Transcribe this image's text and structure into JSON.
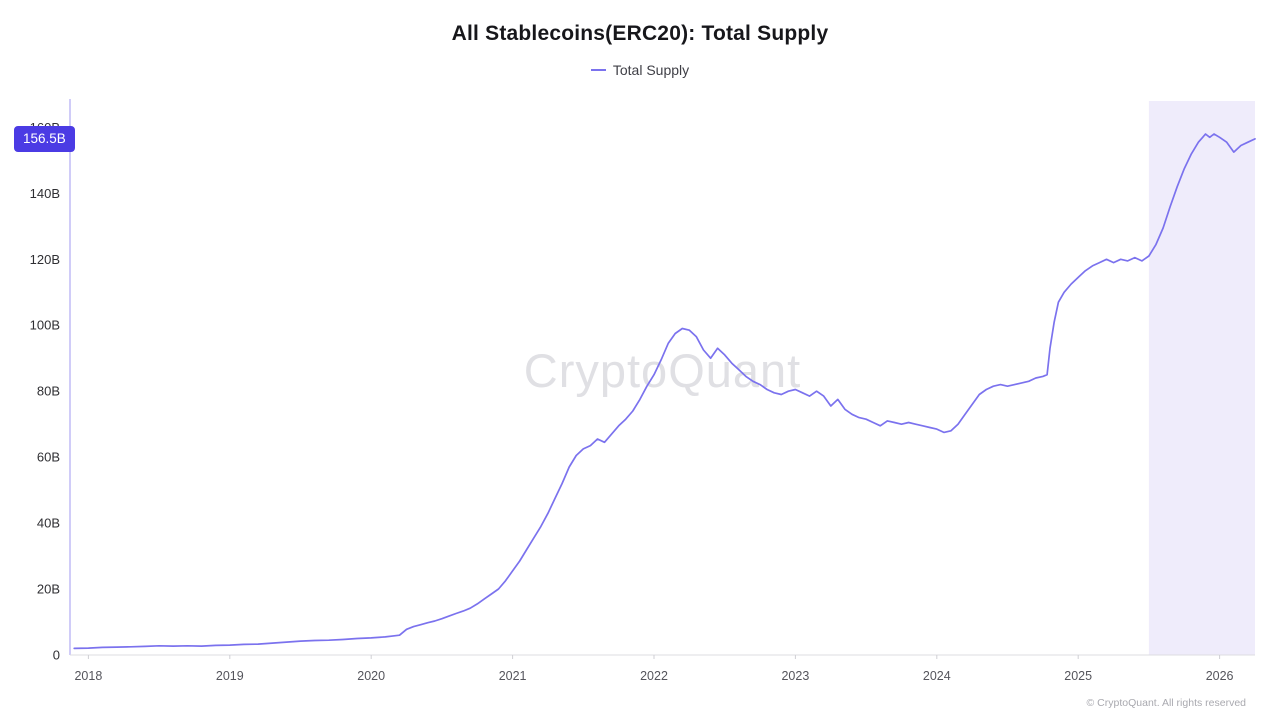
{
  "header": {
    "title": "All Stablecoins(ERC20): Total Supply",
    "legend": {
      "label": "Total Supply"
    }
  },
  "badge": {
    "value": "156.5B",
    "bg_color": "#4B3BE4",
    "text_color": "#ffffff"
  },
  "watermark": "CryptoQuant",
  "footer": {
    "copyright": "© CryptoQuant. All rights reserved"
  },
  "chart_data": {
    "type": "line",
    "title": "All Stablecoins(ERC20): Total Supply",
    "ylabel": "",
    "xlabel": "",
    "grid": false,
    "legend_position": "top",
    "x_range": [
      2017.87,
      2026.25
    ],
    "y_range": [
      0,
      168
    ],
    "x_ticks": [
      2018,
      2019,
      2020,
      2021,
      2022,
      2023,
      2024,
      2025,
      2026
    ],
    "x_tick_labels": [
      "2018",
      "2019",
      "2020",
      "2021",
      "2022",
      "2023",
      "2024",
      "2025",
      "2026"
    ],
    "y_ticks": [
      0,
      20,
      40,
      60,
      80,
      100,
      120,
      140,
      160
    ],
    "y_tick_labels": [
      "0",
      "20B",
      "40B",
      "60B",
      "80B",
      "100B",
      "120B",
      "140B",
      "160B"
    ],
    "axis_color": "#A29AF0",
    "baseline_color": "#dcdce0",
    "tick_color": "#cfcfd4",
    "y_label_color": "#2f2f33",
    "x_label_color": "#55555c",
    "current_value": 156.5,
    "current_value_label": "156.5B",
    "highlight_region": {
      "x_start": 2025.5,
      "x_end": 2026.25,
      "color": "#EFECFB"
    },
    "series": [
      {
        "name": "Total Supply",
        "color": "#7B72EE",
        "points": [
          [
            2017.9,
            2.0
          ],
          [
            2018.0,
            2.1
          ],
          [
            2018.1,
            2.3
          ],
          [
            2018.2,
            2.4
          ],
          [
            2018.3,
            2.5
          ],
          [
            2018.4,
            2.6
          ],
          [
            2018.5,
            2.8
          ],
          [
            2018.6,
            2.7
          ],
          [
            2018.7,
            2.8
          ],
          [
            2018.8,
            2.7
          ],
          [
            2018.9,
            2.9
          ],
          [
            2019.0,
            3.0
          ],
          [
            2019.1,
            3.2
          ],
          [
            2019.2,
            3.3
          ],
          [
            2019.3,
            3.6
          ],
          [
            2019.4,
            3.9
          ],
          [
            2019.5,
            4.2
          ],
          [
            2019.6,
            4.4
          ],
          [
            2019.7,
            4.5
          ],
          [
            2019.8,
            4.7
          ],
          [
            2019.9,
            5.0
          ],
          [
            2020.0,
            5.2
          ],
          [
            2020.1,
            5.5
          ],
          [
            2020.2,
            6.0
          ],
          [
            2020.25,
            7.8
          ],
          [
            2020.3,
            8.6
          ],
          [
            2020.35,
            9.2
          ],
          [
            2020.4,
            9.8
          ],
          [
            2020.45,
            10.3
          ],
          [
            2020.5,
            11.0
          ],
          [
            2020.55,
            11.8
          ],
          [
            2020.6,
            12.6
          ],
          [
            2020.65,
            13.3
          ],
          [
            2020.7,
            14.2
          ],
          [
            2020.75,
            15.5
          ],
          [
            2020.8,
            17.0
          ],
          [
            2020.85,
            18.5
          ],
          [
            2020.9,
            20.0
          ],
          [
            2020.95,
            22.5
          ],
          [
            2021.0,
            25.5
          ],
          [
            2021.05,
            28.5
          ],
          [
            2021.1,
            32.0
          ],
          [
            2021.15,
            35.5
          ],
          [
            2021.2,
            39.0
          ],
          [
            2021.25,
            43.0
          ],
          [
            2021.3,
            47.5
          ],
          [
            2021.35,
            52.0
          ],
          [
            2021.4,
            57.0
          ],
          [
            2021.45,
            60.5
          ],
          [
            2021.5,
            62.5
          ],
          [
            2021.55,
            63.5
          ],
          [
            2021.6,
            65.5
          ],
          [
            2021.65,
            64.5
          ],
          [
            2021.7,
            67.0
          ],
          [
            2021.75,
            69.5
          ],
          [
            2021.8,
            71.5
          ],
          [
            2021.85,
            74.0
          ],
          [
            2021.9,
            77.5
          ],
          [
            2021.95,
            81.5
          ],
          [
            2022.0,
            85.0
          ],
          [
            2022.05,
            89.5
          ],
          [
            2022.1,
            94.5
          ],
          [
            2022.15,
            97.5
          ],
          [
            2022.2,
            99.0
          ],
          [
            2022.25,
            98.5
          ],
          [
            2022.3,
            96.5
          ],
          [
            2022.35,
            92.5
          ],
          [
            2022.4,
            90.0
          ],
          [
            2022.45,
            93.0
          ],
          [
            2022.5,
            91.0
          ],
          [
            2022.55,
            88.5
          ],
          [
            2022.6,
            86.5
          ],
          [
            2022.65,
            84.5
          ],
          [
            2022.7,
            83.0
          ],
          [
            2022.75,
            82.0
          ],
          [
            2022.8,
            80.5
          ],
          [
            2022.85,
            79.5
          ],
          [
            2022.9,
            79.0
          ],
          [
            2022.95,
            80.0
          ],
          [
            2023.0,
            80.5
          ],
          [
            2023.05,
            79.5
          ],
          [
            2023.1,
            78.5
          ],
          [
            2023.15,
            80.0
          ],
          [
            2023.2,
            78.5
          ],
          [
            2023.25,
            75.5
          ],
          [
            2023.3,
            77.5
          ],
          [
            2023.35,
            74.5
          ],
          [
            2023.4,
            73.0
          ],
          [
            2023.45,
            72.0
          ],
          [
            2023.5,
            71.5
          ],
          [
            2023.55,
            70.5
          ],
          [
            2023.6,
            69.5
          ],
          [
            2023.65,
            71.0
          ],
          [
            2023.7,
            70.5
          ],
          [
            2023.75,
            70.0
          ],
          [
            2023.8,
            70.5
          ],
          [
            2023.85,
            70.0
          ],
          [
            2023.9,
            69.5
          ],
          [
            2023.95,
            69.0
          ],
          [
            2024.0,
            68.5
          ],
          [
            2024.05,
            67.5
          ],
          [
            2024.1,
            68.0
          ],
          [
            2024.15,
            70.0
          ],
          [
            2024.2,
            73.0
          ],
          [
            2024.25,
            76.0
          ],
          [
            2024.3,
            79.0
          ],
          [
            2024.35,
            80.5
          ],
          [
            2024.4,
            81.5
          ],
          [
            2024.45,
            82.0
          ],
          [
            2024.5,
            81.5
          ],
          [
            2024.55,
            82.0
          ],
          [
            2024.6,
            82.5
          ],
          [
            2024.65,
            83.0
          ],
          [
            2024.7,
            84.0
          ],
          [
            2024.75,
            84.5
          ],
          [
            2024.78,
            85.0
          ],
          [
            2024.8,
            93.0
          ],
          [
            2024.83,
            101.0
          ],
          [
            2024.86,
            107.0
          ],
          [
            2024.9,
            110.0
          ],
          [
            2024.95,
            112.5
          ],
          [
            2025.0,
            114.5
          ],
          [
            2025.05,
            116.5
          ],
          [
            2025.1,
            118.0
          ],
          [
            2025.15,
            119.0
          ],
          [
            2025.2,
            120.0
          ],
          [
            2025.25,
            119.0
          ],
          [
            2025.3,
            120.0
          ],
          [
            2025.35,
            119.5
          ],
          [
            2025.4,
            120.5
          ],
          [
            2025.45,
            119.5
          ],
          [
            2025.5,
            121.0
          ],
          [
            2025.55,
            124.5
          ],
          [
            2025.6,
            129.5
          ],
          [
            2025.65,
            136.0
          ],
          [
            2025.7,
            142.0
          ],
          [
            2025.75,
            147.5
          ],
          [
            2025.8,
            152.0
          ],
          [
            2025.85,
            155.5
          ],
          [
            2025.88,
            157.0
          ],
          [
            2025.9,
            158.0
          ],
          [
            2025.93,
            157.0
          ],
          [
            2025.96,
            158.0
          ],
          [
            2026.0,
            157.0
          ],
          [
            2026.05,
            155.5
          ],
          [
            2026.1,
            152.5
          ],
          [
            2026.15,
            154.5
          ],
          [
            2026.2,
            155.5
          ],
          [
            2026.25,
            156.5
          ]
        ]
      }
    ]
  }
}
